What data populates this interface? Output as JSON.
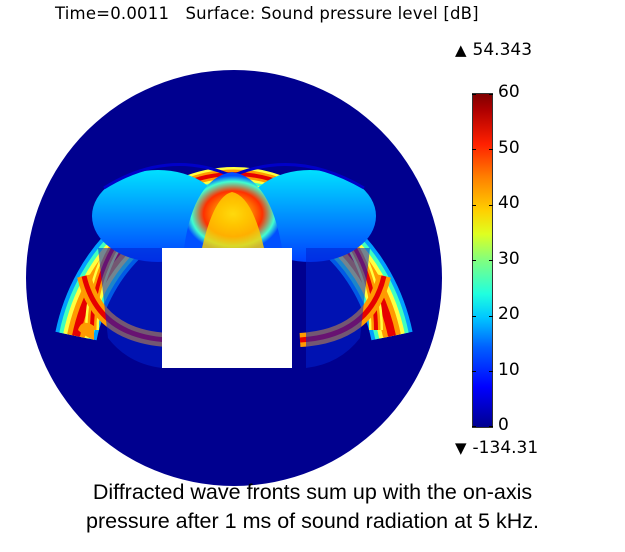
{
  "plot": {
    "title": "Time=0.0011   Surface: Sound pressure level [dB]",
    "colorbar_max": "54.343",
    "colorbar_min": "-134.31",
    "colorbar_ticks": [
      "60",
      "50",
      "40",
      "30",
      "20",
      "10",
      "0"
    ],
    "max_marker_icon": "triangle-up-icon",
    "min_marker_icon": "triangle-down-icon",
    "colors": {
      "background_field": "#00008f",
      "obstacle": "#ffffff",
      "hot": "#e60000",
      "warm": "#ff9a00",
      "mid": "#ffff40",
      "cool": "#00c8ff"
    }
  },
  "caption": {
    "line1": "Diffracted wave fronts sum up with the on-axis",
    "line2": "pressure after 1 ms of sound radiation at 5 kHz."
  }
}
